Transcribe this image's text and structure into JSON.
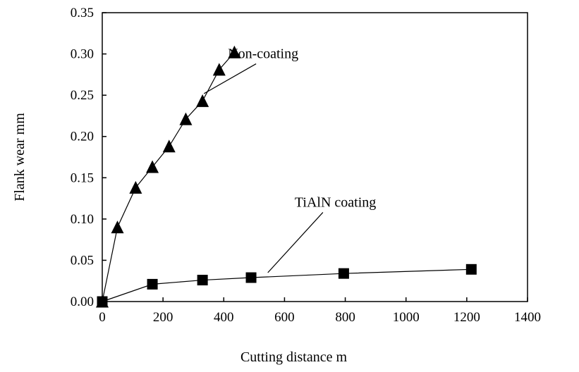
{
  "chart_data": {
    "type": "line",
    "title": "",
    "xlabel": "Cutting distance  m",
    "ylabel": "Flank wear  mm",
    "xlim": [
      0,
      1400
    ],
    "ylim": [
      0,
      0.35
    ],
    "xticks": [
      0,
      200,
      400,
      600,
      800,
      1000,
      1200,
      1400
    ],
    "yticks": [
      0.0,
      0.05,
      0.1,
      0.15,
      0.2,
      0.25,
      0.3,
      0.35
    ],
    "xtick_labels": [
      "0",
      "200",
      "400",
      "600",
      "800",
      "1000",
      "1200",
      "1400"
    ],
    "ytick_labels": [
      "0.00",
      "0.05",
      "0.10",
      "0.15",
      "0.20",
      "0.25",
      "0.30",
      "0.35"
    ],
    "grid": false,
    "legend": "none",
    "series": [
      {
        "marker": "triangle",
        "color": "#000000",
        "x": [
          0,
          50,
          110,
          165,
          220,
          275,
          330,
          385,
          435
        ],
        "y": [
          0.0,
          0.09,
          0.138,
          0.163,
          0.188,
          0.221,
          0.243,
          0.281,
          0.302
        ]
      },
      {
        "marker": "square",
        "color": "#000000",
        "x": [
          0,
          165,
          330,
          490,
          795,
          1215
        ],
        "y": [
          0.0,
          0.021,
          0.026,
          0.029,
          0.034,
          0.039
        ]
      }
    ],
    "annotations": [
      {
        "text": "Non-coating",
        "series_index": 0,
        "text_at": [
          460,
          0.3
        ],
        "point_at": [
          335,
          0.252
        ]
      },
      {
        "text": "TiAlN coating",
        "series_index": 1,
        "text_at": [
          680,
          0.12
        ],
        "point_at": [
          545,
          0.035
        ]
      }
    ]
  }
}
